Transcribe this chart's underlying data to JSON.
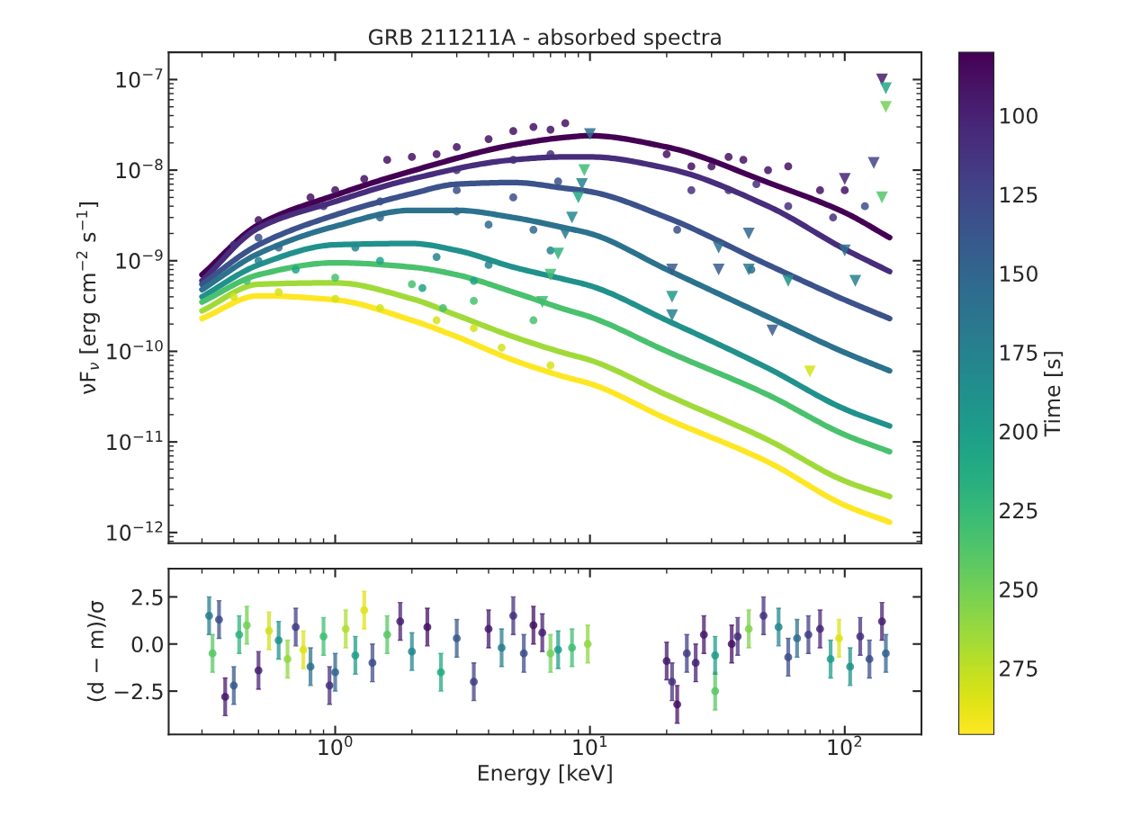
{
  "chart_data": [
    {
      "type": "line",
      "title": "GRB 211211A - absorbed spectra",
      "ylabel": "νF$_{ν}$ [erg cm$^{−2}$ s$^{−1}$]",
      "log": "xy",
      "tick_labels": "y",
      "grid": false,
      "xlim": [
        0.222,
        200
      ],
      "ylim": [
        7.6e-13,
        2e-07
      ],
      "xticks": [
        {
          "value": 1,
          "label": null
        },
        {
          "value": 10,
          "label": null
        },
        {
          "value": 100,
          "label": null
        }
      ],
      "yticks": [
        {
          "value": 1e-12,
          "label": "10$^{−12}$"
        },
        {
          "value": 1e-11,
          "label": "10$^{−11}$"
        },
        {
          "value": 1e-10,
          "label": "10$^{−10}$"
        },
        {
          "value": 1e-09,
          "label": "10$^{−9}$"
        },
        {
          "value": 1e-08,
          "label": "10$^{−8}$"
        },
        {
          "value": 1e-07,
          "label": "10$^{−7}$"
        }
      ],
      "series": [
        {
          "color": "#440154",
          "x": [
            0.3,
            0.5,
            1,
            2,
            5,
            8,
            10,
            20,
            50,
            100,
            150
          ],
          "values": [
            7e-10,
            2.5e-09,
            5.3e-09,
            9.8e-09,
            1.9e-08,
            2.3e-08,
            2.4e-08,
            1.8e-08,
            7.3e-09,
            3.4e-09,
            1.8e-09
          ]
        },
        {
          "color": "#472d7b",
          "x": [
            0.3,
            0.5,
            1,
            2,
            5,
            8,
            10,
            20,
            50,
            100,
            150
          ],
          "values": [
            6e-10,
            2.3e-09,
            4.5e-09,
            8e-09,
            1.3e-08,
            1.4e-08,
            1.4e-08,
            1.05e-08,
            4e-09,
            1.34e-09,
            7.6e-10
          ]
        },
        {
          "color": "#3b528b",
          "x": [
            0.3,
            0.5,
            1,
            2,
            3,
            5,
            8,
            10,
            20,
            50,
            100,
            150
          ],
          "values": [
            5.5e-10,
            1.5e-09,
            3.2e-09,
            5.5e-09,
            7e-09,
            7.3e-09,
            6.3e-09,
            5.8e-09,
            3e-09,
            9e-10,
            3.7e-10,
            2.3e-10
          ]
        },
        {
          "color": "#2c728e",
          "x": [
            0.3,
            0.5,
            1,
            2,
            3,
            5,
            8,
            10,
            20,
            50,
            100,
            150
          ],
          "values": [
            4.8e-10,
            1.2e-09,
            2.4e-09,
            3.6e-09,
            3.6e-09,
            3e-09,
            2.3e-09,
            2e-09,
            8e-10,
            2.4e-10,
            9.7e-11,
            6.1e-11
          ]
        },
        {
          "color": "#21918c",
          "x": [
            0.3,
            0.5,
            1,
            2,
            3,
            5,
            8,
            10,
            20,
            50,
            100,
            150
          ],
          "values": [
            4e-10,
            9e-10,
            1.5e-09,
            1.55e-09,
            1.3e-09,
            8.5e-10,
            6.2e-10,
            5.3e-10,
            2.2e-10,
            6.5e-11,
            2.3e-11,
            1.5e-11
          ]
        },
        {
          "color": "#4ac16d",
          "x": [
            0.3,
            0.5,
            1,
            2,
            3,
            5,
            8,
            10,
            20,
            50,
            100,
            150
          ],
          "values": [
            3.5e-10,
            7e-10,
            9.5e-10,
            8.5e-10,
            7e-10,
            4.5e-10,
            2.9e-10,
            2.4e-10,
            1e-10,
            3.3e-11,
            1.2e-11,
            7.8e-12
          ]
        },
        {
          "color": "#a0da39",
          "x": [
            0.3,
            0.5,
            1,
            2,
            3,
            5,
            8,
            10,
            20,
            50,
            100,
            150
          ],
          "values": [
            2.8e-10,
            5.5e-10,
            5.7e-10,
            3.8e-10,
            2.5e-10,
            1.45e-10,
            9.5e-11,
            8e-11,
            3.3e-11,
            1.05e-11,
            3.7e-12,
            2.5e-12
          ]
        },
        {
          "color": "#fde725",
          "x": [
            0.3,
            0.5,
            1,
            2,
            3,
            5,
            8,
            10,
            20,
            50,
            100,
            150
          ],
          "values": [
            2.3e-10,
            4.1e-10,
            3.7e-10,
            2.2e-10,
            1.45e-10,
            8e-11,
            5.2e-11,
            4.4e-11,
            1.8e-11,
            6e-12,
            2e-12,
            1.3e-12
          ]
        },
        {
          "type": "scatter",
          "marker": "circle",
          "x": [
            0.5,
            0.8,
            1,
            1.3,
            1.6,
            2,
            2.5,
            3,
            4,
            5,
            6,
            7,
            8,
            20,
            25,
            30,
            35,
            40,
            50,
            60,
            80,
            100,
            0.4,
            0.9,
            3,
            5,
            7,
            25,
            35,
            45,
            60,
            90,
            0.5,
            1.5,
            3,
            5,
            7.5,
            22,
            120,
            0.6,
            1.5,
            3,
            4,
            6,
            43,
            0.5,
            1.2,
            2.5,
            4,
            7,
            0.7,
            1.5,
            2.2,
            3.5,
            0.45,
            1,
            2,
            2.65,
            3.5,
            6,
            0.4,
            0.6,
            1,
            1.5,
            2.5,
            3.5,
            4.5,
            7
          ],
          "values": [
            2.8e-09,
            5e-09,
            6e-09,
            8e-09,
            1.3e-08,
            1.4e-08,
            1.5e-08,
            1.8e-08,
            2.2e-08,
            2.7e-08,
            3e-08,
            2.8e-08,
            3.3e-08,
            1.5e-08,
            1.1e-08,
            1.1e-08,
            1.4e-08,
            1.3e-08,
            1e-08,
            1.1e-08,
            6e-09,
            6e-09,
            1.5e-09,
            4e-09,
            1e-08,
            1.3e-08,
            1.5e-08,
            6e-09,
            6e-09,
            7e-09,
            4e-09,
            3e-09,
            1.8e-09,
            4.5e-09,
            6e-09,
            5e-09,
            7.5e-09,
            2.2e-09,
            4e-09,
            1.4e-09,
            3e-09,
            3.5e-09,
            2.5e-09,
            2.2e-09,
            8e-10,
            1e-09,
            1.4e-09,
            1.1e-09,
            9e-10,
            1.3e-09,
            8e-10,
            1e-09,
            5e-10,
            6e-10,
            6e-10,
            6.5e-10,
            5.5e-10,
            3e-10,
            3.6e-10,
            2.2e-10,
            4e-10,
            4.5e-10,
            3.8e-10,
            3e-10,
            2.2e-10,
            1.8e-10,
            1.1e-10,
            7e-11
          ],
          "colors": [
            "#471063",
            "#471063",
            "#471063",
            "#471063",
            "#471063",
            "#471063",
            "#471063",
            "#471063",
            "#471063",
            "#471063",
            "#471063",
            "#471063",
            "#471063",
            "#471063",
            "#471063",
            "#471063",
            "#471063",
            "#471063",
            "#471063",
            "#471063",
            "#471063",
            "#471063",
            "#472f7d",
            "#472f7d",
            "#472f7d",
            "#472f7d",
            "#472f7d",
            "#472f7d",
            "#472f7d",
            "#472f7d",
            "#472f7d",
            "#472f7d",
            "#3c4f8a",
            "#3c4f8a",
            "#3c4f8a",
            "#3c4f8a",
            "#3c4f8a",
            "#3c4f8a",
            "#3c4f8a",
            "#306a8e",
            "#306a8e",
            "#306a8e",
            "#306a8e",
            "#306a8e",
            "#306a8e",
            "#25858e",
            "#25858e",
            "#25858e",
            "#25858e",
            "#25858e",
            "#20a386",
            "#20a386",
            "#20a386",
            "#20a386",
            "#48c16e",
            "#48c16e",
            "#48c16e",
            "#48c16e",
            "#48c16e",
            "#48c16e",
            "#d5e21a",
            "#d5e21a",
            "#d5e21a",
            "#d5e21a",
            "#d5e21a",
            "#d5e21a",
            "#d5e21a",
            "#d5e21a"
          ]
        },
        {
          "type": "scatter",
          "marker": "triangle",
          "x": [
            10,
            9.5,
            9.3,
            9,
            8.5,
            8,
            7.5,
            7,
            6.5,
            21,
            21,
            21,
            32,
            32,
            42,
            42,
            52,
            60,
            73,
            100,
            100,
            110,
            130,
            140,
            145,
            145,
            140
          ],
          "values": [
            2.5e-08,
            1e-08,
            7e-09,
            5e-09,
            3e-09,
            2e-09,
            1.2e-09,
            7e-10,
            3.5e-10,
            8e-10,
            4e-10,
            2.5e-10,
            1.4e-09,
            8e-10,
            8e-10,
            2e-09,
            1.7e-10,
            6e-10,
            6e-11,
            1.3e-09,
            8e-09,
            6e-10,
            1.2e-08,
            1e-07,
            8e-08,
            5e-08,
            5e-09
          ],
          "colors": [
            "#2e6f8e",
            "#3fbc73",
            "#26818e",
            "#22a785",
            "#238a8d",
            "#2a788e",
            "#2eb37c",
            "#3fbc73",
            "#3fbc73",
            "#375b8d",
            "#1f9a8a",
            "#26818e",
            "#2e6f8e",
            "#375b8d",
            "#2a788e",
            "#32658e",
            "#375b8d",
            "#1f928c",
            "#d5e21a",
            "#2e6f8e",
            "#482374",
            "#26818e",
            "#414487",
            "#481a6c",
            "#22a785",
            "#75d054",
            "#54c568"
          ]
        }
      ]
    },
    {
      "type": "scatter",
      "xlabel": "Energy [keV]",
      "clabel": "Time [s]",
      "clim": [
        296,
        80
      ],
      "cticks": [
        100,
        125,
        150,
        175,
        200,
        225,
        250,
        275
      ],
      "ylabel": "(d − m)/σ",
      "log": "x",
      "grid": false,
      "xlim": [
        0.222,
        200
      ],
      "ylim": [
        -4.8,
        4.0
      ],
      "xticks": [
        {
          "value": 1,
          "label": "10$^{0}$"
        },
        {
          "value": 10,
          "label": "10$^{1}$"
        },
        {
          "value": 100,
          "label": "10$^{2}$"
        }
      ],
      "yticks": [
        {
          "value": -2.5,
          "label": "−2.5"
        },
        {
          "value": 0,
          "label": "0.0"
        },
        {
          "value": 2.5,
          "label": "2.5"
        }
      ],
      "series": [
        {
          "marker": "circle",
          "x": [
            0.32,
            0.33,
            0.35,
            0.37,
            0.4,
            0.42,
            0.45,
            0.5,
            0.55,
            0.6,
            0.65,
            0.7,
            0.75,
            0.8,
            0.9,
            0.95,
            1.0,
            1.1,
            1.2,
            1.3,
            1.4,
            1.6,
            1.8,
            2.0,
            2.3,
            2.6,
            3.0,
            3.5,
            4.0,
            4.5,
            5.0,
            5.5,
            6.0,
            6.5,
            7.0,
            7.5,
            8.5,
            9.8,
            20,
            21,
            22,
            24,
            26,
            28,
            31,
            31,
            36,
            38,
            42,
            48,
            55,
            60,
            65,
            72,
            80,
            88,
            95,
            105,
            115,
            125,
            140,
            145
          ],
          "values": [
            1.5,
            -0.5,
            1.3,
            -2.8,
            -2.2,
            0.5,
            1.0,
            -1.4,
            0.7,
            0.2,
            -0.8,
            0.9,
            -0.3,
            -1.2,
            0.4,
            -2.2,
            -1.5,
            0.8,
            -0.6,
            1.8,
            -1.0,
            0.5,
            1.2,
            -0.4,
            0.9,
            -1.5,
            0.3,
            -2.0,
            0.8,
            -0.2,
            1.5,
            -0.5,
            1.0,
            0.6,
            -0.5,
            -0.3,
            -0.2,
            0.0,
            -0.9,
            -2.0,
            -3.2,
            -0.5,
            -1.0,
            0.5,
            -2.5,
            -0.6,
            0.0,
            0.4,
            0.8,
            1.5,
            0.9,
            -0.7,
            0.3,
            0.5,
            0.8,
            -0.8,
            0.3,
            -1.2,
            0.4,
            -0.8,
            1.2,
            -0.5
          ],
          "errors": [
            1,
            1,
            1,
            1,
            1,
            1,
            1,
            1,
            1,
            1,
            1,
            1,
            1,
            1,
            1,
            1,
            1,
            1,
            1,
            1,
            1,
            1,
            1,
            1,
            1,
            1,
            1,
            1,
            1,
            1,
            1,
            1,
            1,
            1,
            1,
            1,
            1,
            1,
            1,
            1,
            1,
            1,
            1,
            1,
            1,
            1,
            1,
            1,
            1,
            1,
            1,
            1,
            1,
            1,
            1,
            1,
            1,
            1,
            1,
            1,
            1,
            1
          ],
          "cvalues": [
            170,
            240,
            130,
            95,
            140,
            220,
            250,
            100,
            280,
            190,
            260,
            120,
            285,
            160,
            230,
            110,
            150,
            270,
            200,
            285,
            130,
            240,
            100,
            180,
            90,
            210,
            140,
            120,
            95,
            170,
            110,
            130,
            90,
            100,
            250,
            200,
            230,
            260,
            95,
            110,
            90,
            120,
            100,
            95,
            240,
            200,
            90,
            110,
            255,
            110,
            180,
            130,
            160,
            120,
            105,
            200,
            285,
            190,
            110,
            130,
            100,
            150
          ]
        }
      ]
    }
  ]
}
